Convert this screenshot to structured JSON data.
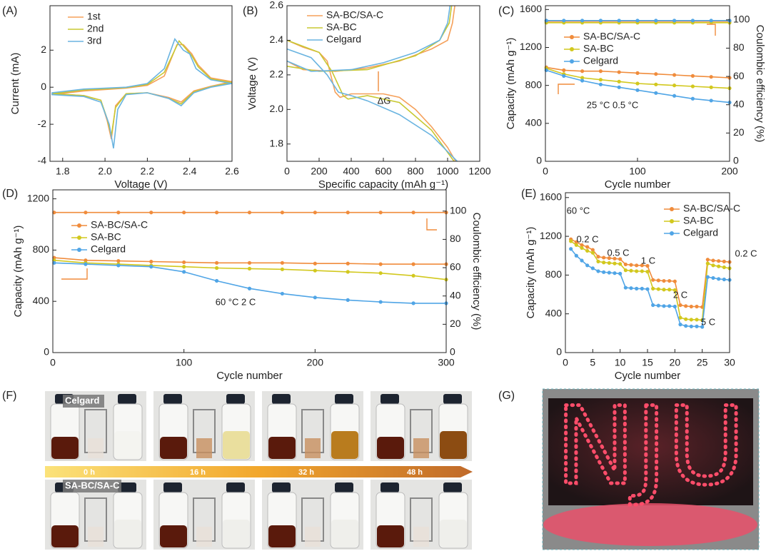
{
  "chart_data": [
    {
      "type": "line",
      "panel": "(A)",
      "xlabel": "Voltage (V)",
      "ylabel": "Current (mA)",
      "xlim": [
        1.74,
        2.6
      ],
      "xticks": [
        1.8,
        {
          "value": 2,
          "label": "2.0"
        },
        2.2,
        2.4,
        2.6
      ],
      "ylim": [
        -4,
        4.4
      ],
      "yticks": [
        -4,
        -2,
        0,
        2
      ],
      "series": [
        {
          "name": "1st",
          "color": "#f5a05a",
          "x": [
            2.6,
            2.5,
            2.42,
            2.36,
            2.3,
            2.2,
            2.1,
            2.05,
            2.03,
            2.01,
            1.98,
            1.9,
            1.75,
            1.75,
            1.9,
            2.1,
            2.2,
            2.28,
            2.34,
            2.37,
            2.41,
            2.44,
            2.5,
            2.6
          ],
          "values": [
            0.3,
            0.05,
            -0.2,
            -0.8,
            -0.55,
            -0.3,
            -0.35,
            -1.0,
            -2.8,
            -1.8,
            -0.7,
            -0.45,
            -0.35,
            -0.4,
            -0.2,
            -0.05,
            0.1,
            0.6,
            2.3,
            2.3,
            1.8,
            1.2,
            0.5,
            0.3
          ]
        },
        {
          "name": "2nd",
          "color": "#c8c832",
          "x": [
            2.6,
            2.5,
            2.42,
            2.36,
            2.3,
            2.2,
            2.1,
            2.05,
            2.03,
            2.01,
            1.98,
            1.9,
            1.75,
            1.75,
            1.9,
            2.1,
            2.2,
            2.28,
            2.35,
            2.38,
            2.41,
            2.44,
            2.5,
            2.6
          ],
          "values": [
            0.25,
            0.02,
            -0.25,
            -0.9,
            -0.6,
            -0.3,
            -0.35,
            -1.1,
            -2.6,
            -1.7,
            -0.7,
            -0.45,
            -0.35,
            -0.35,
            -0.15,
            -0.02,
            0.15,
            0.8,
            2.5,
            2.1,
            1.7,
            1.1,
            0.45,
            0.25
          ]
        },
        {
          "name": "3rd",
          "color": "#6ab4e0",
          "x": [
            2.6,
            2.5,
            2.42,
            2.36,
            2.3,
            2.2,
            2.1,
            2.06,
            2.04,
            2.02,
            1.98,
            1.9,
            1.75,
            1.75,
            1.9,
            2.1,
            2.2,
            2.28,
            2.33,
            2.37,
            2.4,
            2.43,
            2.5,
            2.6
          ],
          "values": [
            0.2,
            0,
            -0.3,
            -1.0,
            -0.6,
            -0.3,
            -0.4,
            -1.2,
            -3.3,
            -2.0,
            -0.8,
            -0.5,
            -0.4,
            -0.3,
            -0.1,
            0,
            0.2,
            1.0,
            2.6,
            2.0,
            1.8,
            1.0,
            0.4,
            0.2
          ]
        }
      ]
    },
    {
      "type": "line",
      "panel": "(B)",
      "xlabel": "Specific capacity (mAh g⁻¹)",
      "ylabel": "Voltage (V)",
      "xlim": [
        0,
        1200
      ],
      "xticks": [
        0,
        200,
        400,
        600,
        800,
        1000,
        1200
      ],
      "ylim": [
        1.7,
        2.6
      ],
      "yticks": [
        1.8,
        {
          "value": 2,
          "label": "2.0"
        },
        2.2,
        2.4,
        2.6
      ],
      "annotations": [
        "ΔG"
      ],
      "series": [
        {
          "name": "SA-BC/SA-C",
          "color": "#f5a05a",
          "x": [
            0,
            100,
            200,
            250,
            300,
            330,
            400,
            600,
            700,
            800,
            900,
            1000,
            1050,
            null,
            0,
            100,
            300,
            500,
            700,
            900,
            1000,
            1030,
            1045
          ],
          "values": [
            2.4,
            2.36,
            2.33,
            2.28,
            2.1,
            2.07,
            2.09,
            2.09,
            2.07,
            2.0,
            1.9,
            1.78,
            1.7,
            null,
            2.28,
            2.23,
            2.22,
            2.24,
            2.28,
            2.35,
            2.4,
            2.5,
            2.6
          ]
        },
        {
          "name": "SA-BC",
          "color": "#c8c832",
          "x": [
            0,
            200,
            280,
            350,
            380,
            500,
            700,
            900,
            1040,
            null,
            0,
            200,
            500,
            800,
            950,
            1010,
            1025
          ],
          "values": [
            2.4,
            2.33,
            2.22,
            2.08,
            2.06,
            2.08,
            2.04,
            1.88,
            1.7,
            null,
            2.25,
            2.22,
            2.23,
            2.31,
            2.4,
            2.5,
            2.6
          ]
        },
        {
          "name": "Celgard",
          "color": "#6ab4e0",
          "x": [
            0,
            150,
            250,
            320,
            400,
            500,
            700,
            900,
            1060,
            null,
            0,
            150,
            400,
            600,
            800,
            950,
            1000,
            1015
          ],
          "values": [
            2.35,
            2.3,
            2.2,
            2.1,
            2.08,
            2.05,
            1.97,
            1.85,
            1.7,
            null,
            2.28,
            2.22,
            2.23,
            2.27,
            2.33,
            2.4,
            2.5,
            2.6
          ]
        }
      ]
    },
    {
      "type": "line",
      "panel": "(C)",
      "xlabel": "Cycle number",
      "ylabel": "Capacity (mAh g⁻¹)",
      "y2label": "Coulombic efficiency (%)",
      "marker": "circle",
      "xlim": [
        0,
        200
      ],
      "xticks": [
        0,
        100,
        200
      ],
      "ylim": [
        0,
        1640
      ],
      "yticks": [
        0,
        400,
        800,
        1200,
        1600
      ],
      "y2lim": [
        0,
        110
      ],
      "y2ticks": [
        0,
        20,
        40,
        60,
        80,
        100
      ],
      "annotations": [
        "25 °C 0.5 °C"
      ],
      "x": [
        1,
        20,
        40,
        60,
        80,
        100,
        120,
        140,
        160,
        180,
        200
      ],
      "series": [
        {
          "name": "SA-BC/SA-C",
          "color": "#f08c3c",
          "values": [
            990,
            960,
            950,
            950,
            940,
            930,
            920,
            910,
            900,
            890,
            880
          ]
        },
        {
          "name": "SA-BC",
          "color": "#d2c81e",
          "values": [
            980,
            920,
            880,
            860,
            840,
            820,
            810,
            800,
            790,
            780,
            770
          ]
        },
        {
          "name": "Celgard",
          "color": "#50a5e6",
          "values": [
            960,
            900,
            850,
            810,
            780,
            750,
            720,
            690,
            660,
            640,
            620
          ]
        },
        {
          "color": "#f08c3c",
          "axis": "y2",
          "values": [
            99,
            99,
            99,
            99,
            99,
            99,
            99,
            99,
            99,
            99,
            99
          ]
        },
        {
          "color": "#d2c81e",
          "axis": "y2",
          "values": [
            98,
            98,
            98,
            98,
            98,
            98,
            98,
            98,
            98,
            98,
            98
          ]
        },
        {
          "color": "#50a5e6",
          "axis": "y2",
          "values": [
            99.5,
            99.5,
            99.5,
            99.5,
            99.5,
            99.5,
            99.5,
            99.5,
            99.5,
            99.5,
            99.5
          ]
        }
      ]
    },
    {
      "type": "line",
      "panel": "(D)",
      "xlabel": "Cycle number",
      "ylabel": "Capacity (mAh g⁻¹)",
      "y2label": "Coulombic efficiency (%)",
      "marker": "circle",
      "xlim": [
        0,
        300
      ],
      "xticks": [
        0,
        100,
        200,
        300
      ],
      "ylim": [
        0,
        1270
      ],
      "yticks": [
        0,
        400,
        800,
        1200
      ],
      "y2lim": [
        0,
        115
      ],
      "y2ticks": [
        0,
        20,
        40,
        60,
        80,
        100
      ],
      "annotations": [
        "60 °C 2 C"
      ],
      "x": [
        1,
        25,
        50,
        75,
        100,
        125,
        150,
        175,
        200,
        225,
        250,
        275,
        300
      ],
      "series": [
        {
          "name": "SA-BC/SA-C",
          "color": "#f08c3c",
          "values": [
            740,
            720,
            715,
            710,
            705,
            700,
            700,
            700,
            695,
            695,
            690,
            690,
            690
          ]
        },
        {
          "name": "SA-BC",
          "color": "#d2c81e",
          "values": [
            720,
            700,
            690,
            680,
            670,
            660,
            655,
            650,
            640,
            630,
            620,
            600,
            570
          ]
        },
        {
          "name": "Celgard",
          "color": "#50a5e6",
          "values": [
            700,
            690,
            680,
            670,
            630,
            560,
            500,
            460,
            430,
            410,
            395,
            385,
            385
          ]
        },
        {
          "color": "#f08c3c",
          "axis": "y2",
          "values": [
            99,
            99,
            99,
            99,
            99,
            99,
            99,
            99,
            99,
            99,
            99,
            99,
            99
          ]
        }
      ]
    },
    {
      "type": "line",
      "panel": "(E)",
      "xlabel": "Cycle number",
      "ylabel": "Capacity (mAh g⁻¹)",
      "marker": "circle",
      "xlim": [
        0,
        30
      ],
      "xticks": [
        0,
        5,
        10,
        15,
        20,
        25,
        30
      ],
      "ylim": [
        0,
        1650
      ],
      "yticks": [
        0,
        400,
        800,
        1200,
        1600
      ],
      "annotations": [
        "60 °C",
        "0.2 C",
        "0.5 C",
        "1 C",
        "2 C",
        "5 C",
        "0.2 C"
      ],
      "x": [
        1,
        2,
        3,
        4,
        5,
        6,
        7,
        8,
        9,
        10,
        11,
        12,
        13,
        14,
        15,
        16,
        17,
        18,
        19,
        20,
        21,
        22,
        23,
        24,
        25,
        26,
        27,
        28,
        29,
        30
      ],
      "series": [
        {
          "name": "SA-BC/SA-C",
          "color": "#f08c3c",
          "values": [
            1170,
            1140,
            1110,
            1090,
            1060,
            990,
            980,
            975,
            970,
            965,
            910,
            905,
            900,
            900,
            895,
            750,
            745,
            740,
            740,
            735,
            490,
            480,
            475,
            475,
            470,
            960,
            950,
            945,
            940,
            935
          ]
        },
        {
          "name": "SA-BC",
          "color": "#d2c81e",
          "values": [
            1150,
            1110,
            1080,
            1050,
            1030,
            940,
            930,
            925,
            920,
            915,
            850,
            845,
            840,
            840,
            835,
            660,
            655,
            650,
            650,
            645,
            360,
            345,
            340,
            340,
            335,
            920,
            900,
            890,
            880,
            870
          ]
        },
        {
          "name": "Celgard",
          "color": "#50a5e6",
          "values": [
            1070,
            1000,
            950,
            900,
            870,
            840,
            830,
            825,
            820,
            815,
            670,
            665,
            660,
            660,
            655,
            490,
            485,
            480,
            480,
            475,
            290,
            275,
            270,
            270,
            265,
            780,
            770,
            760,
            755,
            750
          ]
        }
      ]
    }
  ],
  "panel_f": {
    "panel": "(F)",
    "rows": [
      "Celgard",
      "SA-BC/SA-C"
    ],
    "times": [
      "0 h",
      "16 h",
      "32 h",
      "48 h"
    ]
  },
  "panel_g": {
    "panel": "(G)",
    "sign": "NJU"
  }
}
